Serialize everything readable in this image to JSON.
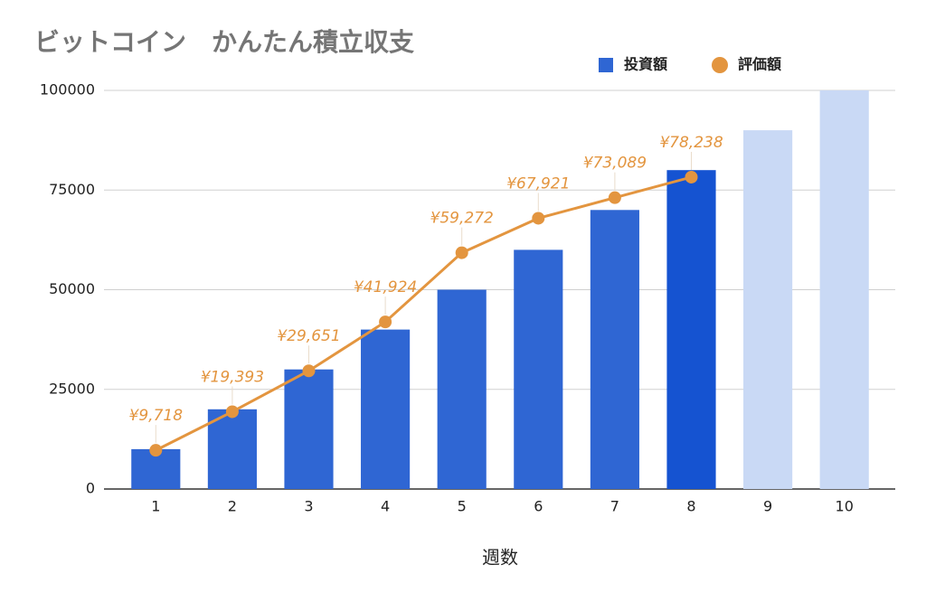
{
  "chart_data": {
    "type": "combo",
    "title": "ビットコイン　かんたん積立収支",
    "x_label": "週数",
    "categories": [
      "1",
      "2",
      "3",
      "4",
      "5",
      "6",
      "7",
      "8",
      "9",
      "10"
    ],
    "series": [
      {
        "name": "投資額",
        "type": "bar",
        "color": "#2f66d3",
        "colors": [
          "#2f66d3",
          "#2f66d3",
          "#2f66d3",
          "#2f66d3",
          "#2f66d3",
          "#2f66d3",
          "#2f66d3",
          "#1553d1",
          "#c9d9f5",
          "#c9d9f5"
        ],
        "values": [
          10000,
          20000,
          30000,
          40000,
          50000,
          60000,
          70000,
          80000,
          90000,
          100000
        ]
      },
      {
        "name": "評価額",
        "type": "line",
        "color": "#e3953f",
        "values": [
          9718,
          19393,
          29651,
          41924,
          59272,
          67921,
          73089,
          78238,
          null,
          null
        ],
        "value_labels": [
          "¥9,718",
          "¥19,393",
          "¥29,651",
          "¥41,924",
          "¥59,272",
          "¥67,921",
          "¥73,089",
          "¥78,238",
          null,
          null
        ]
      }
    ],
    "ylim": [
      0,
      100000
    ],
    "yticks": [
      0,
      25000,
      50000,
      75000,
      100000
    ],
    "grid": true,
    "legend": "top-right"
  }
}
